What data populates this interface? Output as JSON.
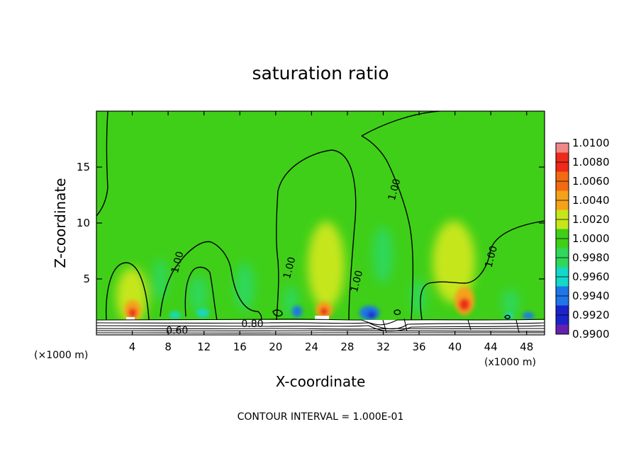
{
  "chart_data": {
    "type": "heatmap",
    "title": "saturation ratio",
    "xlabel": "X-coordinate",
    "ylabel": "Z-coordinate",
    "x_unit": "(×1000 m)",
    "x_unit_right": "(x1000 m)",
    "xlim": [
      0,
      50
    ],
    "ylim": [
      0,
      20
    ],
    "x_ticks": [
      4,
      8,
      12,
      16,
      20,
      24,
      28,
      32,
      36,
      40,
      44,
      48
    ],
    "y_ticks": [
      5,
      10,
      15
    ],
    "footer": "CONTOUR INTERVAL = 1.000E-01",
    "colorbar": {
      "levels": [
        "1.0100",
        "1.0080",
        "1.0060",
        "1.0040",
        "1.0020",
        "1.0000",
        "0.9980",
        "0.9960",
        "0.9940",
        "0.9920",
        "0.9900"
      ],
      "colors": [
        "#f08888",
        "#ee2a1a",
        "#f26a12",
        "#f4a21a",
        "#c6e61a",
        "#3fcf18",
        "#2fd85a",
        "#14d8c8",
        "#1e76e8",
        "#1a24c8",
        "#6420b0"
      ]
    },
    "contour_labels": [
      {
        "text": "1.00",
        "x": 9.0,
        "z": 6.5
      },
      {
        "text": "1.00",
        "x": 21.5,
        "z": 6.0
      },
      {
        "text": "1.00",
        "x": 29.0,
        "z": 4.8
      },
      {
        "text": "1.00",
        "x": 33.2,
        "z": 13.0
      },
      {
        "text": "1.00",
        "x": 44.0,
        "z": 7.0
      },
      {
        "text": "0.80",
        "x": 17.4,
        "z": 1.0
      },
      {
        "text": "0.60",
        "x": 9.0,
        "z": 0.4
      }
    ]
  }
}
